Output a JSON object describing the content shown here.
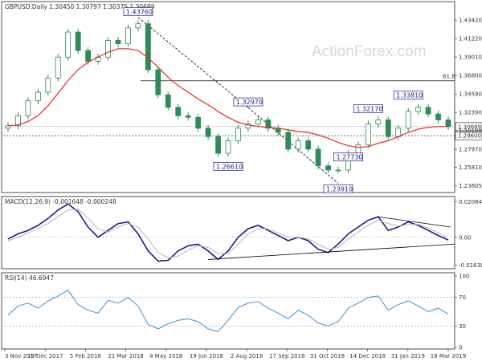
{
  "window": {
    "title": "GBPUSD,Daily  1.30450 1.30797 1.30375 1.30689",
    "watermark": "ActionForex.com"
  },
  "colors": {
    "background": "#ffffff",
    "candles": "#2e8b57",
    "moving_average": "#e8271f",
    "macd_line": "#1a1a8c",
    "macd_signal": "#b5b5b5",
    "rsi_line": "#3b8fd9",
    "level_labels": "#1a1a8c",
    "trendline": "#000000"
  },
  "chart_data": [
    {
      "type": "line",
      "panel": "price",
      "series_style": "candlestick",
      "title": "GBPUSD,Daily  1.30450 1.30797 1.30375 1.30689",
      "x_ticks": [
        "3 Nov 2017",
        "19 Dec 2017",
        "5 Feb 2018",
        "21 Mar 2018",
        "4 May 2018",
        "19 Jun 2018",
        "2 Aug 2018",
        "17 Sep 2018",
        "31 Oct 2018",
        "14 Dec 2018",
        "31 Jan 2019",
        "18 Mar 2019"
      ],
      "y_ticks": [
        "1.43420",
        "1.41220",
        "1.39010",
        "1.36800",
        "1.34590",
        "1.32390",
        "1.30180",
        "1.27970",
        "1.25810",
        "1.23605"
      ],
      "ylim": [
        1.23,
        1.443
      ],
      "x": [
        "3 Nov 2017",
        "19 Nov 2017",
        "4 Dec 2017",
        "19 Dec 2017",
        "3 Jan 2018",
        "19 Jan 2018",
        "26 Jan 2018",
        "5 Feb 2018",
        "21 Feb 2018",
        "6 Mar 2018",
        "21 Mar 2018",
        "30 Mar 2018",
        "10 Apr 2018",
        "17 Apr 2018",
        "4 May 2018",
        "19 May 2018",
        "4 Jun 2018",
        "19 Jun 2018",
        "4 Jul 2018",
        "19 Jul 2018",
        "2 Aug 2018",
        "15 Aug 2018",
        "27 Aug 2018",
        "10 Sep 2018",
        "17 Sep 2018",
        "25 Sep 2018",
        "3 Oct 2018",
        "17 Oct 2018",
        "31 Oct 2018",
        "15 Nov 2018",
        "30 Nov 2018",
        "14 Dec 2018",
        "20 Dec 2018",
        "3 Jan 2019",
        "10 Jan 2019",
        "16 Jan 2019",
        "23 Jan 2019",
        "31 Jan 2019",
        "10 Feb 2019",
        "20 Feb 2019",
        "4 Mar 2019",
        "12 Mar 2019",
        "18 Mar 2019",
        "25 Mar 2019",
        "1 Apr 2019"
      ],
      "series": [
        {
          "values": [
            1.308,
            1.32,
            1.338,
            1.348,
            1.365,
            1.39,
            1.42,
            1.398,
            1.385,
            1.39,
            1.41,
            1.406,
            1.425,
            1.43,
            1.375,
            1.345,
            1.33,
            1.32,
            1.318,
            1.305,
            1.295,
            1.275,
            1.29,
            1.305,
            1.31,
            1.315,
            1.305,
            1.3,
            1.28,
            1.29,
            1.28,
            1.26,
            1.255,
            1.255,
            1.275,
            1.285,
            1.31,
            1.315,
            1.295,
            1.305,
            1.325,
            1.33,
            1.322,
            1.315,
            1.3069
          ]
        }
      ],
      "moving_average": [
        1.308,
        1.309,
        1.313,
        1.32,
        1.332,
        1.347,
        1.362,
        1.375,
        1.384,
        1.39,
        1.396,
        1.4,
        1.4,
        1.398,
        1.389,
        1.378,
        1.366,
        1.356,
        1.348,
        1.34,
        1.333,
        1.325,
        1.318,
        1.312,
        1.309,
        1.307,
        1.306,
        1.305,
        1.303,
        1.301,
        1.3,
        1.297,
        1.293,
        1.288,
        1.284,
        1.282,
        1.283,
        1.287,
        1.29,
        1.295,
        1.3,
        1.304,
        1.306,
        1.307,
        1.307
      ],
      "annotations": [
        {
          "text": "1.43760",
          "x": "17 Apr 2018",
          "y": 1.4376
        },
        {
          "text": "1.32970",
          "x": "17 Sep 2018",
          "y": 1.3297
        },
        {
          "text": "1.26610",
          "x": "27 Aug 2018",
          "y": 1.2661
        },
        {
          "text": "1.23910",
          "x": "3 Jan 2019",
          "y": 1.2391
        },
        {
          "text": "1.27730",
          "x": "10 Jan 2019",
          "y": 1.2773
        },
        {
          "text": "1.32170",
          "x": "23 Jan 2019",
          "y": 1.3217
        },
        {
          "text": "1.33810",
          "x": "4 Mar 2019",
          "y": 1.3381
        }
      ],
      "fib_label": "61.8",
      "fib_level": 1.3617,
      "horizontal_dotted_level": 1.296,
      "current_price_label": "1.30689",
      "dotted_level_label": "1.29600"
    },
    {
      "type": "line",
      "panel": "macd",
      "title": "MACD(12,26,9) -0.001648 -0.000248",
      "y_ticks": [
        "0.020848",
        "0.00",
        "-0.016389"
      ],
      "ylim": [
        -0.0175,
        0.0215
      ],
      "x": [
        "3 Nov 2017",
        "19 Nov 2017",
        "4 Dec 2017",
        "19 Dec 2017",
        "3 Jan 2018",
        "19 Jan 2018",
        "26 Jan 2018",
        "5 Feb 2018",
        "21 Feb 2018",
        "6 Mar 2018",
        "21 Mar 2018",
        "30 Mar 2018",
        "10 Apr 2018",
        "17 Apr 2018",
        "4 May 2018",
        "19 May 2018",
        "4 Jun 2018",
        "19 Jun 2018",
        "4 Jul 2018",
        "19 Jul 2018",
        "2 Aug 2018",
        "15 Aug 2018",
        "27 Aug 2018",
        "10 Sep 2018",
        "17 Sep 2018",
        "25 Sep 2018",
        "3 Oct 2018",
        "17 Oct 2018",
        "31 Oct 2018",
        "15 Nov 2018",
        "30 Nov 2018",
        "14 Dec 2018",
        "20 Dec 2018",
        "3 Jan 2019",
        "10 Jan 2019",
        "16 Jan 2019",
        "23 Jan 2019",
        "31 Jan 2019",
        "10 Feb 2019",
        "20 Feb 2019",
        "4 Mar 2019",
        "12 Mar 2019",
        "18 Mar 2019",
        "25 Mar 2019",
        "1 Apr 2019"
      ],
      "series": [
        {
          "values": [
            -0.001,
            0.002,
            0.004,
            0.007,
            0.011,
            0.016,
            0.0195,
            0.015,
            0.006,
            0.0,
            0.004,
            0.008,
            0.009,
            0.002,
            -0.008,
            -0.014,
            -0.0135,
            -0.008,
            -0.005,
            -0.004,
            -0.008,
            -0.013,
            -0.008,
            0.0,
            0.005,
            0.007,
            0.004,
            0.001,
            -0.002,
            0.0,
            -0.002,
            -0.007,
            -0.009,
            -0.004,
            0.002,
            0.006,
            0.01,
            0.012,
            0.004,
            0.006,
            0.009,
            0.007,
            0.004,
            0.001,
            -0.0016
          ]
        },
        {
          "values": [
            -0.002,
            0.0,
            0.0025,
            0.005,
            0.008,
            0.012,
            0.016,
            0.0165,
            0.011,
            0.005,
            0.003,
            0.006,
            0.008,
            0.006,
            -0.001,
            -0.009,
            -0.012,
            -0.011,
            -0.0075,
            -0.005,
            -0.006,
            -0.0095,
            -0.0095,
            -0.004,
            0.002,
            0.005,
            0.005,
            0.0025,
            0.0,
            0.0,
            -0.001,
            -0.004,
            -0.007,
            -0.006,
            -0.001,
            0.003,
            0.007,
            0.01,
            0.008,
            0.0065,
            0.0075,
            0.0075,
            0.0055,
            0.0025,
            -0.0002
          ]
        }
      ]
    },
    {
      "type": "line",
      "panel": "rsi",
      "title": "RSI(14) 46.6947",
      "y_ticks": [
        "100",
        "70",
        "30",
        "0"
      ],
      "ylim": [
        0,
        100
      ],
      "x": [
        "3 Nov 2017",
        "19 Nov 2017",
        "4 Dec 2017",
        "19 Dec 2017",
        "3 Jan 2018",
        "19 Jan 2018",
        "26 Jan 2018",
        "5 Feb 2018",
        "21 Feb 2018",
        "6 Mar 2018",
        "21 Mar 2018",
        "30 Mar 2018",
        "10 Apr 2018",
        "17 Apr 2018",
        "4 May 2018",
        "19 May 2018",
        "4 Jun 2018",
        "19 Jun 2018",
        "4 Jul 2018",
        "19 Jul 2018",
        "2 Aug 2018",
        "15 Aug 2018",
        "27 Aug 2018",
        "10 Sep 2018",
        "17 Sep 2018",
        "25 Sep 2018",
        "3 Oct 2018",
        "17 Oct 2018",
        "31 Oct 2018",
        "15 Nov 2018",
        "30 Nov 2018",
        "14 Dec 2018",
        "20 Dec 2018",
        "3 Jan 2019",
        "10 Jan 2019",
        "16 Jan 2019",
        "23 Jan 2019",
        "31 Jan 2019",
        "10 Feb 2019",
        "20 Feb 2019",
        "4 Mar 2019",
        "12 Mar 2019",
        "18 Mar 2019",
        "25 Mar 2019",
        "1 Apr 2019"
      ],
      "series": [
        {
          "values": [
            45,
            58,
            62,
            55,
            65,
            72,
            80,
            60,
            52,
            48,
            66,
            62,
            70,
            58,
            32,
            26,
            33,
            38,
            40,
            36,
            26,
            22,
            38,
            56,
            62,
            64,
            55,
            48,
            40,
            52,
            45,
            34,
            30,
            36,
            55,
            62,
            70,
            72,
            52,
            60,
            65,
            58,
            50,
            55,
            46.69
          ]
        }
      ],
      "levels": [
        70,
        30
      ]
    }
  ]
}
